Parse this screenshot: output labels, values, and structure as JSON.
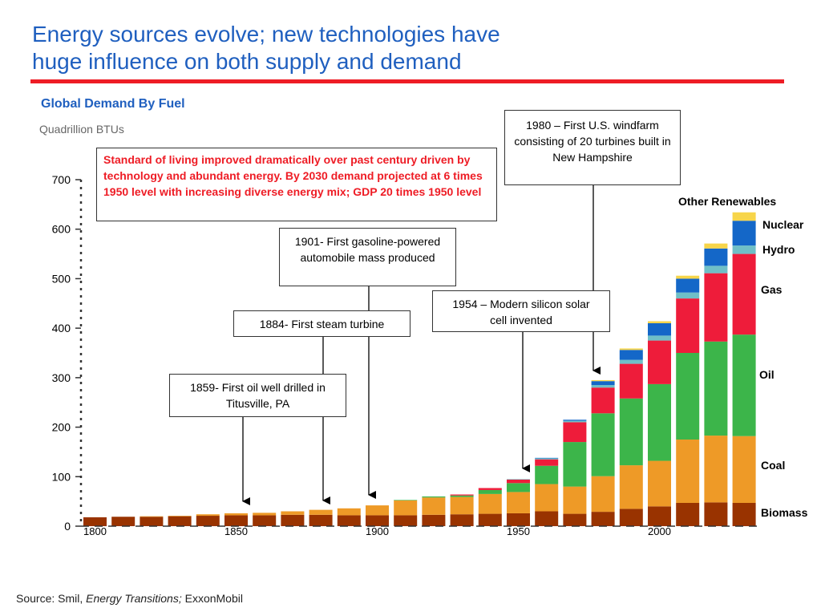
{
  "title_line1": "Energy sources evolve; new technologies have",
  "title_line2": "huge influence on both supply and demand",
  "source": {
    "prefix": "Source: Smil,",
    "book": "Energy Transitions;",
    "suffix": "ExxonMobil"
  },
  "annotations": {
    "red_note": "Standard  of living improved dramatically over past century driven by technology and  abundant  energy.  By 2030 demand  projected at 6 times 1950 level with increasing diverse energy mix; GDP 20 times 1950 level",
    "oil_well": "1859- First oil well drilled in Titusville, PA",
    "steam_turbine": "1884- First steam turbine",
    "automobile": "1901- First gasoline-powered automobile mass produced",
    "solar": "1954 – Modern silicon solar cell invented",
    "windfarm": "1980 – First U.S. windfarm consisting of 20 turbines built in New Hampshire"
  },
  "colors": {
    "Biomass": "#993300",
    "Coal": "#ee9a27",
    "Oil": "#3cb54a",
    "Gas": "#ee1c3a",
    "Hydro": "#6fbfc7",
    "Nuclear": "#1467c8",
    "Other Renewables": "#f7d54a",
    "title": "#1f5fbf",
    "accent_red": "#ee1c25"
  },
  "chart_data": {
    "type": "bar",
    "stacked": true,
    "title": "Global Demand By Fuel",
    "ylabel": "Quadrillion BTUs",
    "xlabel": "",
    "ylim": [
      0,
      700
    ],
    "yticks": [
      0,
      100,
      200,
      300,
      400,
      500,
      600,
      700
    ],
    "xticks": [
      "1800",
      "1850",
      "1900",
      "1950",
      "2000"
    ],
    "x": [
      1800,
      1810,
      1820,
      1830,
      1840,
      1850,
      1860,
      1870,
      1880,
      1890,
      1900,
      1910,
      1920,
      1930,
      1940,
      1950,
      1960,
      1970,
      1980,
      1990,
      2000,
      2010,
      2020,
      2030
    ],
    "series": [
      {
        "name": "Biomass",
        "values": [
          18,
          19,
          19,
          20,
          21,
          22,
          22,
          23,
          23,
          22,
          22,
          22,
          23,
          24,
          25,
          26,
          30,
          25,
          29,
          35,
          40,
          47,
          48,
          47
        ]
      },
      {
        "name": "Coal",
        "values": [
          0,
          0,
          1,
          1,
          3,
          4,
          5,
          7,
          10,
          14,
          20,
          30,
          35,
          35,
          40,
          43,
          55,
          55,
          72,
          88,
          92,
          128,
          135,
          135
        ]
      },
      {
        "name": "Oil",
        "values": [
          0,
          0,
          0,
          0,
          0,
          0,
          0,
          0,
          0,
          0,
          0,
          1,
          2,
          3,
          8,
          18,
          37,
          90,
          127,
          135,
          155,
          175,
          190,
          205
        ]
      },
      {
        "name": "Gas",
        "values": [
          0,
          0,
          0,
          0,
          0,
          0,
          0,
          0,
          0,
          0,
          0,
          0,
          0,
          2,
          4,
          7,
          13,
          40,
          52,
          70,
          88,
          110,
          138,
          163
        ]
      },
      {
        "name": "Hydro",
        "values": [
          0,
          0,
          0,
          0,
          0,
          0,
          0,
          0,
          0,
          0,
          0,
          0,
          0,
          0,
          0,
          1,
          2,
          3,
          5,
          8,
          10,
          12,
          15,
          17
        ]
      },
      {
        "name": "Nuclear",
        "values": [
          0,
          0,
          0,
          0,
          0,
          0,
          0,
          0,
          0,
          0,
          0,
          0,
          0,
          0,
          0,
          0,
          1,
          2,
          8,
          20,
          25,
          28,
          35,
          50
        ]
      },
      {
        "name": "Other Renewables",
        "values": [
          0,
          0,
          0,
          0,
          0,
          0,
          0,
          0,
          0,
          0,
          0,
          0,
          0,
          0,
          0,
          0,
          0,
          0,
          2,
          3,
          4,
          6,
          10,
          17
        ]
      }
    ],
    "legend": "right, labels beside final bar"
  }
}
